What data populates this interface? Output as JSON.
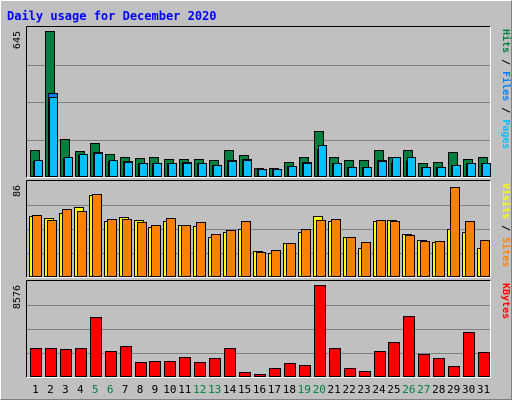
{
  "title": "Daily usage for December 2020",
  "colors": {
    "hits": "#008040",
    "files": "#0080ff",
    "pages": "#00c0ff",
    "visits": "#ffff00",
    "sites": "#ff8000",
    "kbytes": "#ff0000",
    "weekend_label": "#008040",
    "weekday_label": "#000000"
  },
  "chart_data": [
    {
      "type": "bar",
      "panel": "top",
      "max_label": "645",
      "ylim": [
        0,
        645
      ],
      "categories": [
        "1",
        "2",
        "3",
        "4",
        "5",
        "6",
        "7",
        "8",
        "9",
        "10",
        "11",
        "12",
        "13",
        "14",
        "15",
        "16",
        "17",
        "18",
        "19",
        "20",
        "21",
        "22",
        "23",
        "24",
        "25",
        "26",
        "27",
        "28",
        "29",
        "30",
        "31"
      ],
      "weekend_days": [
        "5",
        "6",
        "12",
        "13",
        "19",
        "20",
        "26",
        "27"
      ],
      "legend": [
        {
          "name": "Pages",
          "color": "#00c0ff"
        },
        {
          "name": "Files",
          "color": "#0080ff"
        },
        {
          "name": "Hits",
          "color": "#008040"
        }
      ],
      "series": [
        {
          "name": "Hits",
          "values": [
            120,
            645,
            170,
            115,
            150,
            100,
            90,
            85,
            90,
            80,
            80,
            80,
            75,
            120,
            95,
            40,
            40,
            65,
            90,
            205,
            90,
            75,
            75,
            120,
            90,
            120,
            60,
            65,
            110,
            80,
            90
          ]
        },
        {
          "name": "Files",
          "values": [
            70,
            370,
            85,
            95,
            110,
            70,
            70,
            62,
            60,
            60,
            65,
            60,
            55,
            75,
            80,
            35,
            35,
            50,
            65,
            125,
            60,
            45,
            45,
            75,
            60,
            70,
            45,
            45,
            55,
            60,
            60
          ]
        },
        {
          "name": "Pages",
          "values": [
            75,
            355,
            90,
            100,
            105,
            75,
            65,
            62,
            60,
            60,
            60,
            60,
            55,
            70,
            75,
            35,
            35,
            50,
            60,
            140,
            60,
            45,
            45,
            70,
            90,
            90,
            45,
            45,
            55,
            60,
            60
          ]
        }
      ]
    },
    {
      "type": "bar",
      "panel": "middle",
      "max_label": "86",
      "ylim": [
        0,
        86
      ],
      "categories": [
        "1",
        "2",
        "3",
        "4",
        "5",
        "6",
        "7",
        "8",
        "9",
        "10",
        "11",
        "12",
        "13",
        "14",
        "15",
        "16",
        "17",
        "18",
        "19",
        "20",
        "21",
        "22",
        "23",
        "24",
        "25",
        "26",
        "27",
        "28",
        "29",
        "30",
        "31"
      ],
      "legend": [
        {
          "name": "Sites",
          "color": "#ff8000"
        },
        {
          "name": "Visits",
          "color": "#ffff00"
        }
      ],
      "series": [
        {
          "name": "Visits",
          "values": [
            57,
            55,
            60,
            65,
            77,
            52,
            56,
            53,
            47,
            52,
            49,
            48,
            37,
            42,
            45,
            24,
            22,
            32,
            42,
            57,
            52,
            37,
            27,
            52,
            53,
            40,
            35,
            33,
            45,
            42,
            27
          ]
        },
        {
          "name": "Sites",
          "values": [
            58,
            53,
            64,
            62,
            78,
            54,
            54,
            51,
            49,
            55,
            49,
            51,
            40,
            44,
            52,
            23,
            25,
            32,
            45,
            53,
            54,
            37,
            33,
            53,
            52,
            39,
            34,
            34,
            84,
            52,
            35
          ]
        }
      ]
    },
    {
      "type": "bar",
      "panel": "bottom",
      "max_label": "8576",
      "ylim": [
        0,
        8576
      ],
      "categories": [
        "1",
        "2",
        "3",
        "4",
        "5",
        "6",
        "7",
        "8",
        "9",
        "10",
        "11",
        "12",
        "13",
        "14",
        "15",
        "16",
        "17",
        "18",
        "19",
        "20",
        "21",
        "22",
        "23",
        "24",
        "25",
        "26",
        "27",
        "28",
        "29",
        "30",
        "31"
      ],
      "legend": [
        {
          "name": "KBytes",
          "color": "#ff0000"
        }
      ],
      "series": [
        {
          "name": "KBytes",
          "values": [
            2700,
            2700,
            2600,
            2700,
            5600,
            2400,
            2900,
            1400,
            1500,
            1500,
            1900,
            1400,
            1800,
            2700,
            500,
            300,
            800,
            1300,
            1100,
            8576,
            2700,
            800,
            600,
            2400,
            3300,
            5700,
            2100,
            1800,
            1000,
            4200,
            2300
          ]
        }
      ]
    }
  ]
}
